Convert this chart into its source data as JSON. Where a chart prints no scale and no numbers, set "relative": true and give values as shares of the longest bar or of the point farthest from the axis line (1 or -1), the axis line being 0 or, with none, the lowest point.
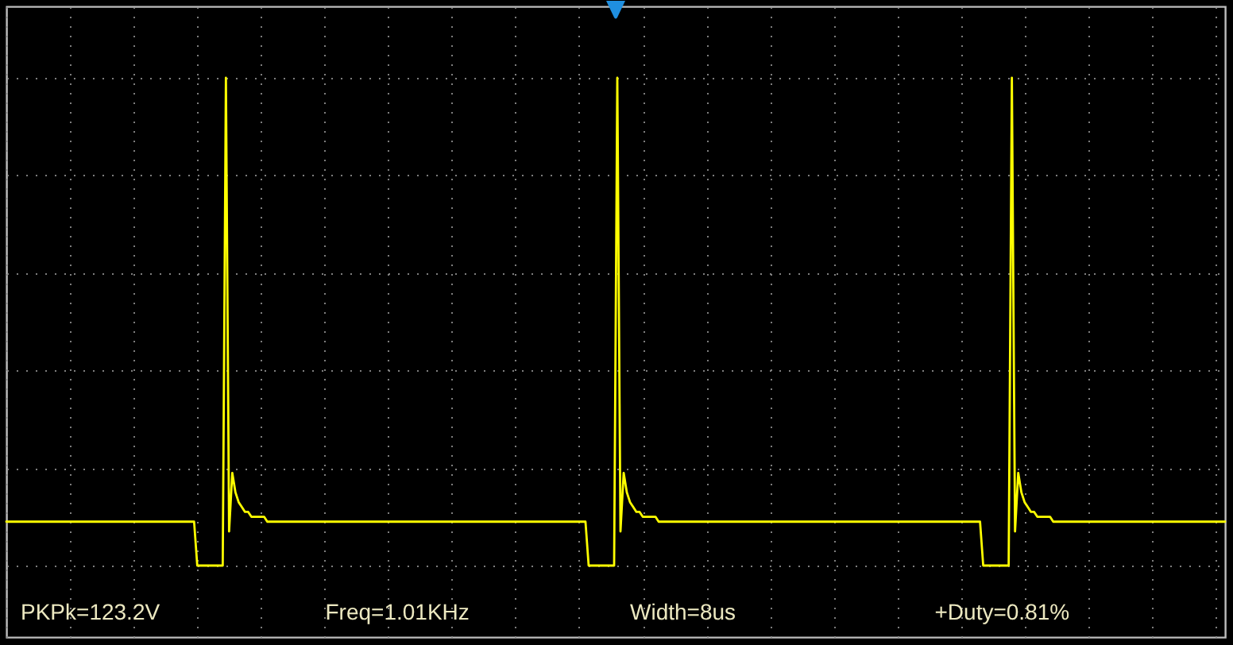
{
  "chart_data": {
    "type": "line",
    "relative": true,
    "categories": [
      null,
      null,
      null,
      null,
      null,
      null,
      null,
      null,
      null,
      null,
      null,
      null,
      null,
      null,
      null,
      null,
      null,
      null,
      null,
      null,
      null,
      null,
      null,
      null,
      null,
      null,
      null,
      null,
      null,
      null,
      null,
      null,
      null,
      null,
      null,
      null,
      null,
      null,
      null,
      null,
      null,
      null,
      null,
      null,
      null,
      null,
      null,
      null,
      null,
      null,
      null,
      null,
      null,
      null,
      null,
      null,
      null,
      null,
      null,
      null,
      null,
      null,
      null,
      null,
      null,
      null,
      null,
      null,
      null,
      null,
      null,
      null,
      null,
      null,
      null,
      null,
      null,
      null,
      null,
      null,
      null,
      null,
      null,
      null,
      null,
      null,
      null,
      null,
      null,
      null,
      null,
      null,
      null,
      null,
      null,
      null,
      null,
      null,
      null,
      null,
      null,
      null,
      null,
      null,
      null,
      null,
      null,
      null,
      null,
      null,
      null,
      null,
      null,
      null,
      null,
      null,
      null,
      null,
      null,
      null,
      null,
      null,
      null,
      null,
      null,
      null,
      null,
      null,
      null,
      null,
      null,
      null,
      null,
      null,
      null,
      null,
      null,
      null,
      null,
      null,
      null,
      null,
      null,
      null,
      null,
      null,
      null,
      null,
      null,
      null,
      null,
      null,
      null,
      null,
      null,
      null,
      null,
      null,
      null,
      null,
      null,
      null,
      null,
      null,
      null,
      null,
      null,
      null,
      null,
      null,
      null,
      null,
      null,
      null,
      null,
      null,
      null,
      null,
      null,
      null,
      null,
      null,
      null,
      null,
      null,
      null,
      null,
      null,
      null,
      null,
      null,
      null,
      null,
      null,
      null,
      null,
      null,
      null,
      null,
      null,
      null,
      null,
      null,
      null,
      null,
      null,
      null,
      null,
      null,
      null,
      null,
      null,
      null,
      null,
      null,
      null,
      null,
      null,
      null,
      null,
      null,
      null,
      null,
      null,
      null,
      null,
      null,
      null,
      null,
      null,
      null,
      null,
      null,
      null,
      null,
      null,
      null,
      null,
      null,
      null,
      null,
      null,
      null,
      null,
      null,
      null,
      null,
      null,
      null,
      null,
      null,
      null,
      null,
      null,
      null,
      null,
      null,
      null,
      null,
      null,
      null,
      null,
      null,
      null,
      null,
      null,
      null,
      null,
      null,
      null,
      null,
      null,
      null,
      null,
      null,
      null,
      null,
      null,
      null,
      null,
      null,
      null,
      null,
      null,
      null,
      null,
      null,
      null,
      null,
      null,
      null,
      null,
      null,
      null,
      null,
      null,
      null,
      null,
      null,
      null,
      null,
      null,
      null,
      null,
      null,
      null,
      null,
      null,
      null,
      null,
      null,
      null,
      null,
      null,
      null,
      null,
      null,
      null,
      null,
      null,
      null,
      null,
      null,
      null,
      null,
      null,
      null,
      null,
      null,
      null,
      null,
      null,
      null,
      null,
      null,
      null,
      null,
      null,
      null,
      null,
      null,
      null,
      null,
      null,
      null,
      null,
      null,
      null,
      null,
      null,
      null,
      null,
      null,
      null,
      null,
      null,
      null,
      null,
      null,
      null,
      null,
      null,
      null,
      null,
      null,
      null,
      null,
      null,
      null,
      null,
      null,
      null,
      null,
      null,
      null,
      null,
      null,
      null,
      null,
      null,
      null,
      null,
      null,
      null
    ],
    "values": [
      0.09,
      0.09,
      0.09,
      0.09,
      0.09,
      0.09,
      0.09,
      0.09,
      0.09,
      0.09,
      0.09,
      0.09,
      0.09,
      0.09,
      0.09,
      0.09,
      0.09,
      0.09,
      0.09,
      0.09,
      0.09,
      0.09,
      0.09,
      0.09,
      0.09,
      0.09,
      0.09,
      0.09,
      0.09,
      0.09,
      0.09,
      0.09,
      0.09,
      0.09,
      0.09,
      0.09,
      0.09,
      0.09,
      0.09,
      0.09,
      0.09,
      0.09,
      0.09,
      0.09,
      0.09,
      0.09,
      0.09,
      0.09,
      0.09,
      0.09,
      0.09,
      0.09,
      0.09,
      0.09,
      0.09,
      0.09,
      0.09,
      0.09,
      0.09,
      0.09,
      0,
      0,
      0,
      0,
      0,
      0,
      0,
      0,
      0,
      1,
      0.07,
      0.19,
      0.15,
      0.13,
      0.12,
      0.11,
      0.11,
      0.1,
      0.1,
      0.1,
      0.1,
      0.1,
      0.09,
      0.09,
      0.09,
      0.09,
      0.09,
      0.09,
      0.09,
      0.09,
      0.09,
      0.09,
      0.09,
      0.09,
      0.09,
      0.09,
      0.09,
      0.09,
      0.09,
      0.09,
      0.09,
      0.09,
      0.09,
      0.09,
      0.09,
      0.09,
      0.09,
      0.09,
      0.09,
      0.09,
      0.09,
      0.09,
      0.09,
      0.09,
      0.09,
      0.09,
      0.09,
      0.09,
      0.09,
      0.09,
      0.09,
      0.09,
      0.09,
      0.09,
      0.09,
      0.09,
      0.09,
      0.09,
      0.09,
      0.09,
      0.09,
      0.09,
      0.09,
      0.09,
      0.09,
      0.09,
      0.09,
      0.09,
      0.09,
      0.09,
      0.09,
      0.09,
      0.09,
      0.09,
      0.09,
      0.09,
      0.09,
      0.09,
      0.09,
      0.09,
      0.09,
      0.09,
      0.09,
      0.09,
      0.09,
      0.09,
      0.09,
      0.09,
      0.09,
      0.09,
      0.09,
      0.09,
      0.09,
      0.09,
      0.09,
      0.09,
      0.09,
      0.09,
      0.09,
      0.09,
      0.09,
      0.09,
      0.09,
      0.09,
      0.09,
      0.09,
      0.09,
      0.09,
      0.09,
      0.09,
      0.09,
      0.09,
      0.09,
      0,
      0,
      0,
      0,
      0,
      0,
      0,
      0,
      0,
      1,
      0.07,
      0.19,
      0.15,
      0.13,
      0.12,
      0.11,
      0.11,
      0.1,
      0.1,
      0.1,
      0.1,
      0.1,
      0.09,
      0.09,
      0.09,
      0.09,
      0.09,
      0.09,
      0.09,
      0.09,
      0.09,
      0.09,
      0.09,
      0.09,
      0.09,
      0.09,
      0.09,
      0.09,
      0.09,
      0.09,
      0.09,
      0.09,
      0.09,
      0.09,
      0.09,
      0.09,
      0.09,
      0.09,
      0.09,
      0.09,
      0.09,
      0.09,
      0.09,
      0.09,
      0.09,
      0.09,
      0.09,
      0.09,
      0.09,
      0.09,
      0.09,
      0.09,
      0.09,
      0.09,
      0.09,
      0.09,
      0.09,
      0.09,
      0.09,
      0.09,
      0.09,
      0.09,
      0.09,
      0.09,
      0.09,
      0.09,
      0.09,
      0.09,
      0.09,
      0.09,
      0.09,
      0.09,
      0.09,
      0.09,
      0.09,
      0.09,
      0.09,
      0.09,
      0.09,
      0.09,
      0.09,
      0.09,
      0.09,
      0.09,
      0.09,
      0.09,
      0.09,
      0.09,
      0.09,
      0.09,
      0.09,
      0.09,
      0.09,
      0.09,
      0.09,
      0.09,
      0.09,
      0.09,
      0.09,
      0.09,
      0.09,
      0.09,
      0.09,
      0.09,
      0.09,
      0.09,
      0.09,
      0.09,
      0.09,
      0.09,
      0.09,
      0.09,
      0.09,
      0.09,
      0,
      0,
      0,
      0,
      0,
      0,
      0,
      0,
      0,
      1,
      0.07,
      0.19,
      0.15,
      0.13,
      0.12,
      0.11,
      0.11,
      0.1,
      0.1,
      0.1,
      0.1,
      0.1,
      0.09,
      0.09,
      0.09,
      0.09,
      0.09,
      0.09,
      0.09,
      0.09,
      0.09,
      0.09,
      0.09,
      0.09,
      0.09,
      0.09,
      0.09,
      0.09,
      0.09,
      0.09,
      0.09,
      0.09,
      0.09,
      0.09,
      0.09,
      0.09,
      0.09,
      0.09,
      0.09,
      0.09,
      0.09,
      0.09,
      0.09,
      0.09,
      0.09,
      0.09,
      0.09,
      0.09,
      0.09,
      0.09,
      0.09,
      0.09,
      0.09,
      0.09,
      0.09,
      0.09,
      0.09,
      0.09,
      0.09,
      0.09,
      0.09,
      0.09,
      0.09,
      0.09,
      0.09,
      0.09,
      0.09
    ],
    "color": "#ffff00",
    "grid": true,
    "annotations": [
      "PKPk=123.2V",
      "Freq=1.01KHz",
      "Width=8us",
      "+Duty=0.81%"
    ]
  }
}
